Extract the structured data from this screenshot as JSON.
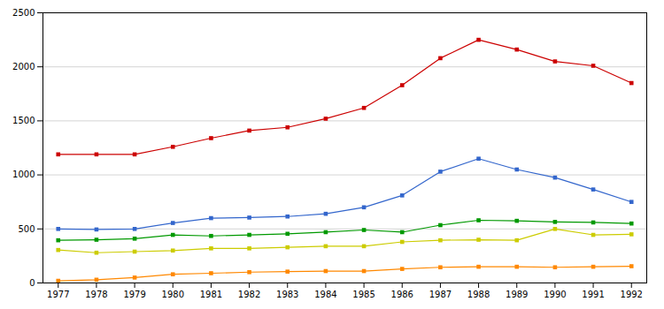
{
  "chart_data": {
    "type": "line",
    "x": [
      1977,
      1978,
      1979,
      1980,
      1981,
      1982,
      1983,
      1984,
      1985,
      1986,
      1987,
      1988,
      1989,
      1990,
      1991,
      1992
    ],
    "series": [
      {
        "color": "#cc0000",
        "values": [
          1190,
          1190,
          1190,
          1260,
          1340,
          1410,
          1440,
          1520,
          1620,
          1830,
          2080,
          2250,
          2160,
          2050,
          2010,
          1850
        ]
      },
      {
        "color": "#3366cc",
        "values": [
          500,
          495,
          500,
          555,
          600,
          605,
          615,
          640,
          700,
          810,
          1030,
          1150,
          1050,
          975,
          865,
          750
        ]
      },
      {
        "color": "#009900",
        "values": [
          395,
          400,
          410,
          445,
          435,
          445,
          455,
          470,
          490,
          470,
          535,
          580,
          575,
          565,
          560,
          550
        ]
      },
      {
        "color": "#cccc00",
        "values": [
          305,
          280,
          290,
          300,
          320,
          320,
          330,
          340,
          340,
          380,
          395,
          400,
          395,
          500,
          445,
          450
        ]
      },
      {
        "color": "#ff8800",
        "values": [
          20,
          30,
          50,
          80,
          90,
          100,
          105,
          110,
          110,
          130,
          145,
          150,
          150,
          145,
          150,
          155
        ]
      }
    ],
    "xlim": [
      1976.6,
      1992.4
    ],
    "xticks": [
      1977,
      1978,
      1979,
      1980,
      1981,
      1982,
      1983,
      1984,
      1985,
      1986,
      1987,
      1988,
      1989,
      1990,
      1991,
      1992
    ],
    "ylim": [
      0,
      2500
    ],
    "yticks": [
      0,
      500,
      1000,
      1500,
      2000,
      2500
    ],
    "grid": true,
    "marker": "square",
    "line_style": "solid"
  }
}
